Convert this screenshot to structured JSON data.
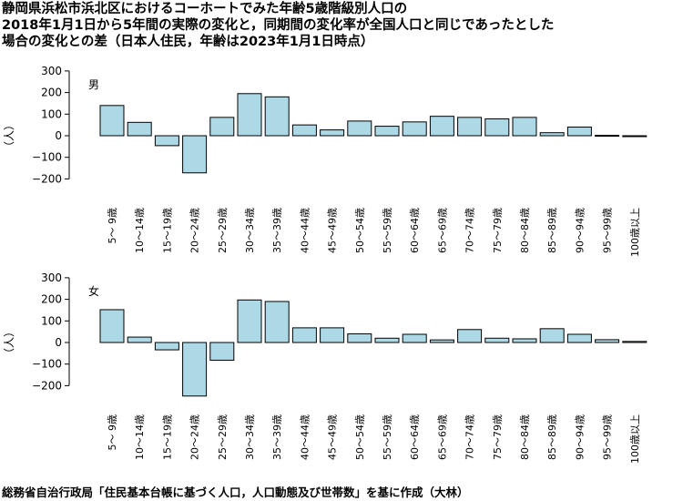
{
  "title_lines": [
    "静岡県浜松市浜北区におけるコーホートでみた年齢5歳階級別人口の",
    "2018年1月1日から5年間の実際の変化と，同期間の変化率が全国人口と同じであったとした",
    "場合の変化との差（日本人住民，年齢は2023年1月1日時点）"
  ],
  "footer": "総務省自治行政局「住民基本台帳に基づく人口，人口動態及び世帯数」を基に作成（大林）",
  "chart_data": [
    {
      "type": "bar",
      "panel_label": "男",
      "ylabel": "（人）",
      "ylim": [
        -200,
        300
      ],
      "yticks": [
        -200,
        -100,
        0,
        100,
        200,
        300
      ],
      "categories": [
        "5～ 9歳",
        "10～14歳",
        "15～19歳",
        "20～24歳",
        "25～29歳",
        "30～34歳",
        "35～39歳",
        "40～44歳",
        "45～49歳",
        "50～54歳",
        "55～59歳",
        "60～64歳",
        "65～69歳",
        "70～74歳",
        "75～79歳",
        "80～84歳",
        "85～89歳",
        "90～94歳",
        "95～99歳",
        "100歳以上"
      ],
      "values": [
        140,
        62,
        -46,
        -172,
        85,
        195,
        180,
        50,
        27,
        68,
        44,
        64,
        90,
        85,
        78,
        85,
        14,
        40,
        2,
        0
      ],
      "bar_color": "#add8e6"
    },
    {
      "type": "bar",
      "panel_label": "女",
      "ylabel": "（人）",
      "ylim": [
        -200,
        300
      ],
      "yticks": [
        -200,
        -100,
        0,
        100,
        200,
        300
      ],
      "categories": [
        "5～ 9歳",
        "10～14歳",
        "15～19歳",
        "20～24歳",
        "25～29歳",
        "30～34歳",
        "35～39歳",
        "40～44歳",
        "45～49歳",
        "50～54歳",
        "55～59歳",
        "60～64歳",
        "65～69歳",
        "70～74歳",
        "75～79歳",
        "80～84歳",
        "85～89歳",
        "90～94歳",
        "95～99歳",
        "100歳以上"
      ],
      "values": [
        152,
        25,
        -34,
        -248,
        -82,
        197,
        190,
        68,
        68,
        40,
        20,
        38,
        12,
        60,
        20,
        17,
        64,
        38,
        13,
        5
      ],
      "bar_color": "#add8e6"
    }
  ]
}
